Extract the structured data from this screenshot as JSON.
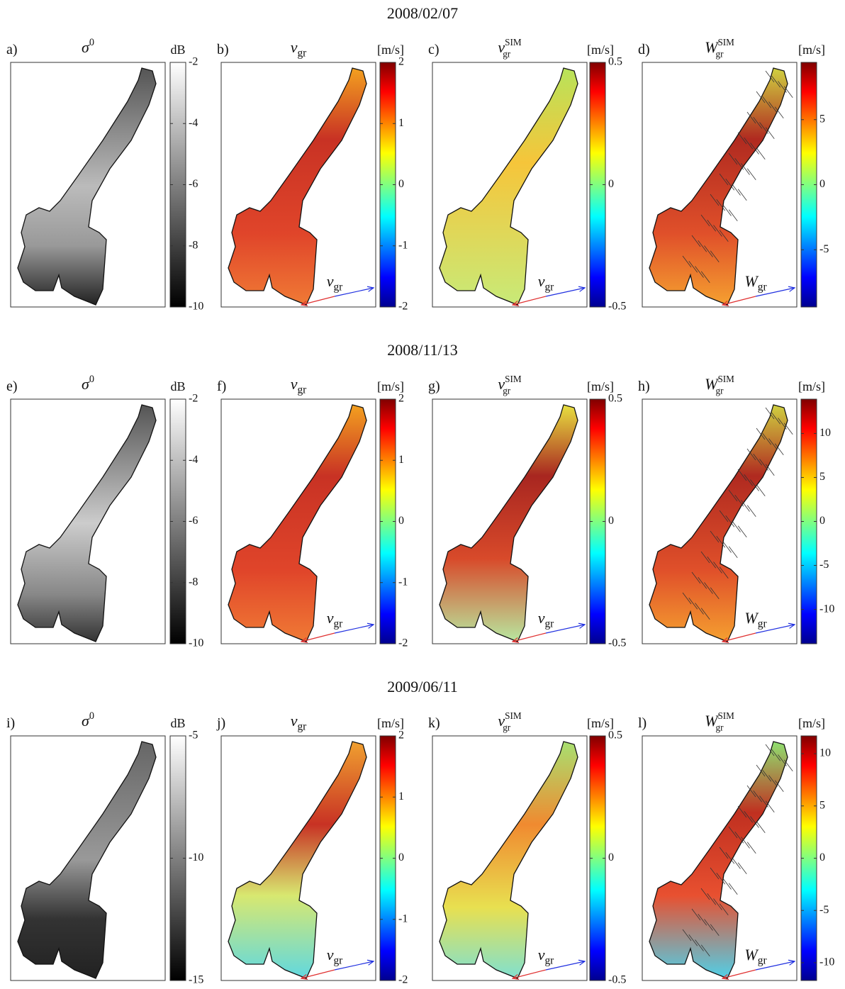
{
  "rows": [
    {
      "date": "2008/02/07",
      "panels": [
        {
          "letter": "a)",
          "title": {
            "base": "σ",
            "sup": "0"
          },
          "unit": "dB",
          "colormap": "gray",
          "clim": [
            -10,
            -2
          ],
          "cticks": [
            -10,
            -8,
            -6,
            -4,
            -2
          ]
        },
        {
          "letter": "b)",
          "title": {
            "base": "v",
            "sub": "gr"
          },
          "unit": "[m/s]",
          "colormap": "jet",
          "clim": [
            -2,
            2
          ],
          "cticks": [
            -2,
            -1,
            0,
            1,
            2
          ],
          "arrow_label": {
            "base": "v",
            "sub": "gr"
          }
        },
        {
          "letter": "c)",
          "title": {
            "base": "v",
            "sub": "gr",
            "sup": "SIM"
          },
          "unit": "[m/s]",
          "colormap": "jet",
          "clim": [
            -0.5,
            0.5
          ],
          "cticks": [
            -0.5,
            0,
            0.5
          ],
          "arrow_label": {
            "base": "v",
            "sub": "gr"
          }
        },
        {
          "letter": "d)",
          "title": {
            "base": "W",
            "sub": "gr",
            "sup": "SIM"
          },
          "unit": "[m/s]",
          "colormap": "jet",
          "clim": [
            -9.4,
            9.4
          ],
          "cticks": [
            -5,
            0,
            5
          ],
          "arrow_label": {
            "base": "W",
            "sub": "gr"
          }
        }
      ]
    },
    {
      "date": "2008/11/13",
      "panels": [
        {
          "letter": "e)",
          "title": {
            "base": "σ",
            "sup": "0"
          },
          "unit": "dB",
          "colormap": "gray",
          "clim": [
            -10,
            -2
          ],
          "cticks": [
            -10,
            -8,
            -6,
            -4,
            -2
          ]
        },
        {
          "letter": "f)",
          "title": {
            "base": "v",
            "sub": "gr"
          },
          "unit": "[m/s]",
          "colormap": "jet",
          "clim": [
            -2,
            2
          ],
          "cticks": [
            -2,
            -1,
            0,
            1,
            2
          ],
          "arrow_label": {
            "base": "v",
            "sub": "gr"
          }
        },
        {
          "letter": "g)",
          "title": {
            "base": "v",
            "sub": "gr",
            "sup": "SIM"
          },
          "unit": "[m/s]",
          "colormap": "jet",
          "clim": [
            -0.5,
            0.5
          ],
          "cticks": [
            -0.5,
            0,
            0.5
          ],
          "arrow_label": {
            "base": "v",
            "sub": "gr"
          }
        },
        {
          "letter": "h)",
          "title": {
            "base": "W",
            "sub": "gr",
            "sup": "SIM"
          },
          "unit": "[m/s]",
          "colormap": "jet",
          "clim": [
            -13.9,
            13.9
          ],
          "cticks": [
            -10,
            -5,
            0,
            5,
            10
          ],
          "arrow_label": {
            "base": "W",
            "sub": "gr"
          }
        }
      ]
    },
    {
      "date": "2009/06/11",
      "panels": [
        {
          "letter": "i)",
          "title": {
            "base": "σ",
            "sup": "0"
          },
          "unit": "dB",
          "colormap": "gray",
          "clim": [
            -15,
            -5
          ],
          "cticks": [
            -15,
            -10,
            -5
          ]
        },
        {
          "letter": "j)",
          "title": {
            "base": "v",
            "sub": "gr"
          },
          "unit": "[m/s]",
          "colormap": "jet",
          "clim": [
            -2,
            2
          ],
          "cticks": [
            -2,
            -1,
            0,
            1,
            2
          ],
          "arrow_label": {
            "base": "v",
            "sub": "gr"
          }
        },
        {
          "letter": "k)",
          "title": {
            "base": "v",
            "sub": "gr",
            "sup": "SIM"
          },
          "unit": "[m/s]",
          "colormap": "jet",
          "clim": [
            -0.5,
            0.5
          ],
          "cticks": [
            -0.5,
            0,
            0.5
          ],
          "arrow_label": {
            "base": "v",
            "sub": "gr"
          }
        },
        {
          "letter": "l)",
          "title": {
            "base": "W",
            "sub": "gr",
            "sup": "SIM"
          },
          "unit": "[m/s]",
          "colormap": "jet",
          "clim": [
            -11.7,
            11.7
          ],
          "cticks": [
            -10,
            -5,
            0,
            5,
            10
          ],
          "arrow_label": {
            "base": "W",
            "sub": "gr"
          }
        }
      ]
    }
  ]
}
